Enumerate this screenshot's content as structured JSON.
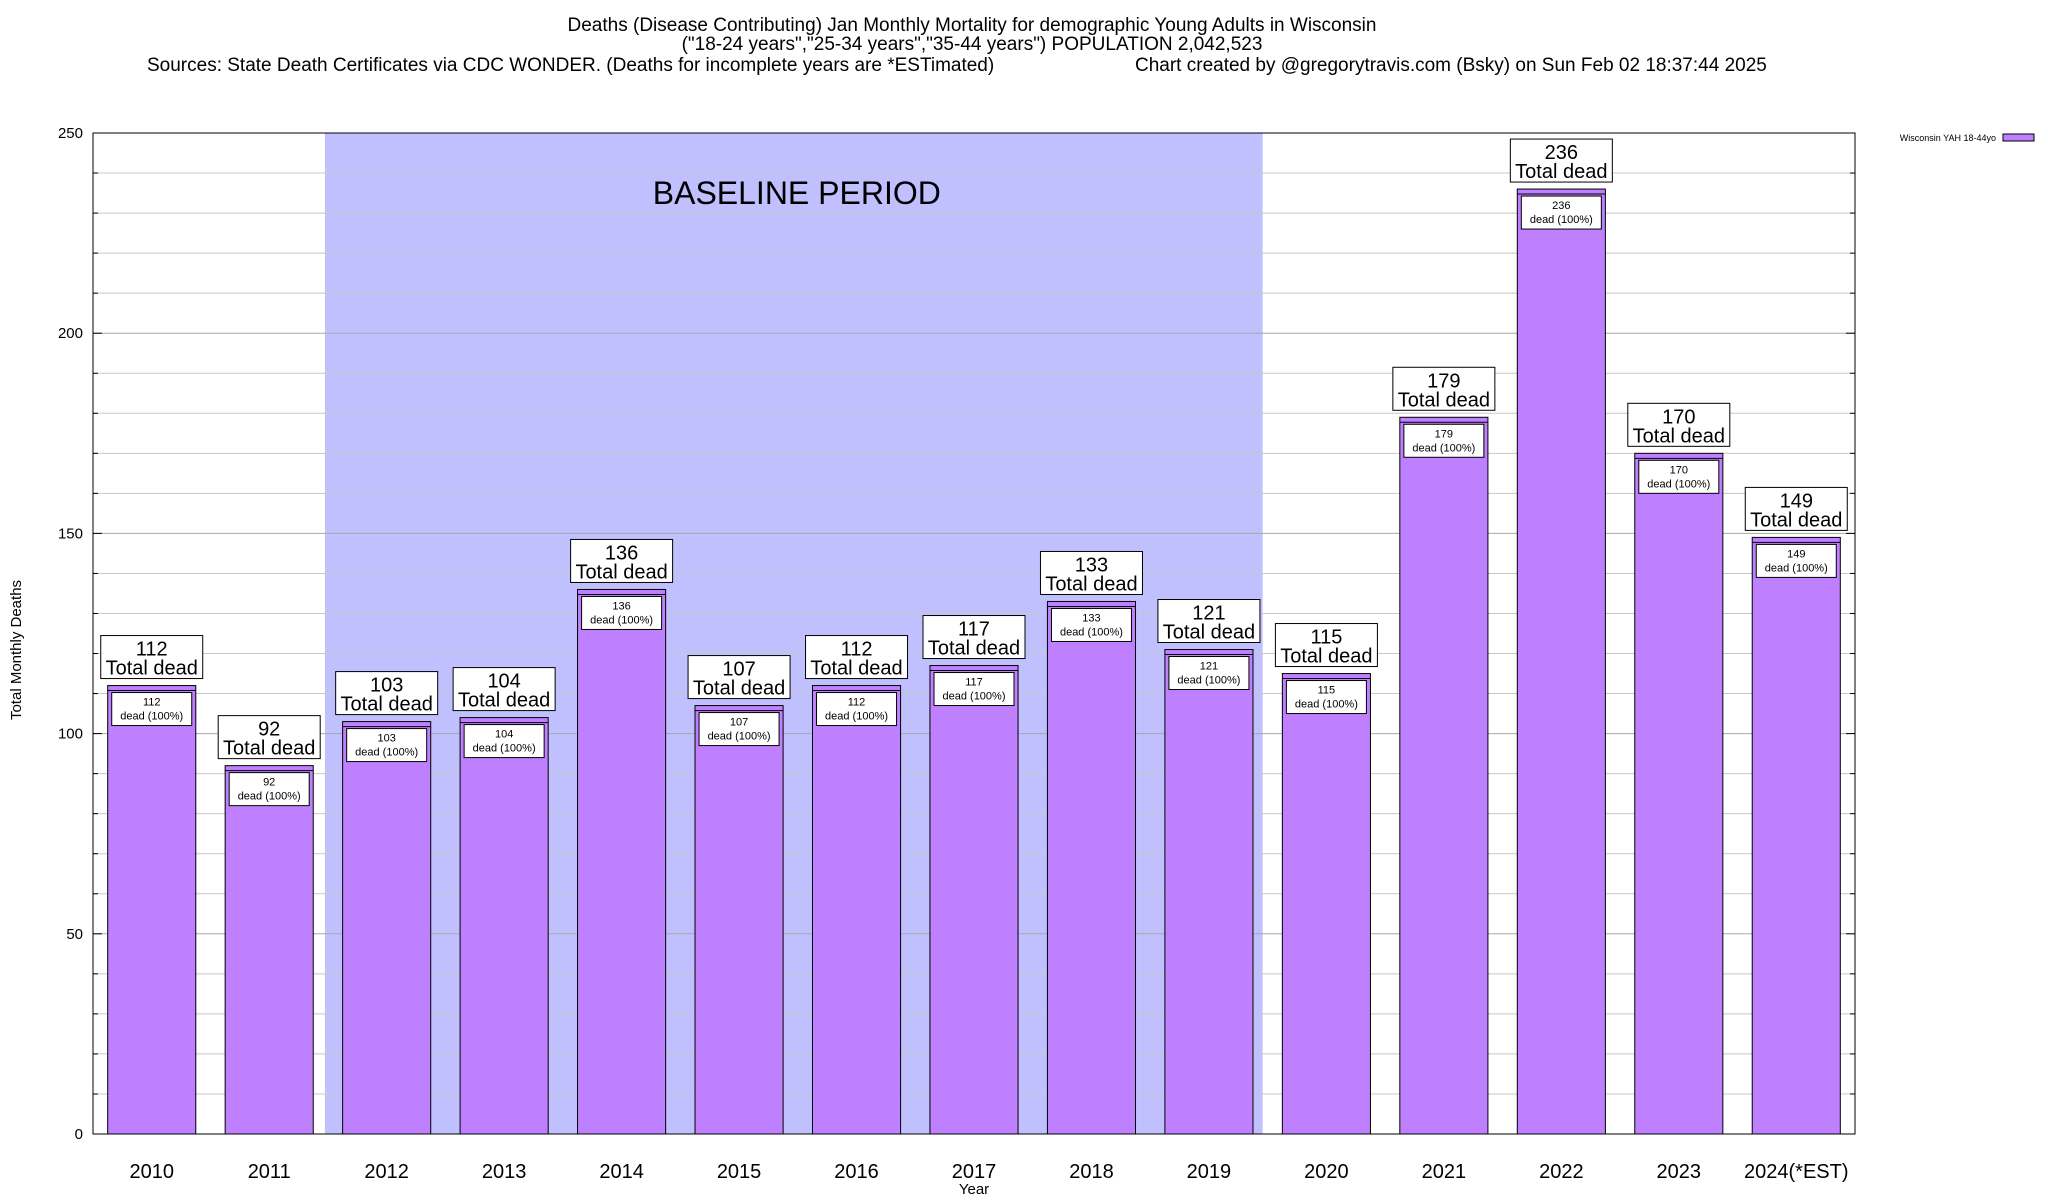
{
  "chart_data": {
    "type": "bar",
    "title_lines": [
      "Deaths (Disease Contributing) Jan Monthly Mortality for demographic Young Adults in Wisconsin",
      "(\"18-24 years\",\"25-34 years\",\"35-44 years\") POPULATION 2,042,523"
    ],
    "sources": "Sources: State Death Certificates via CDC WONDER. (Deaths for incomplete years are *ESTimated)",
    "credit": "Chart created by @gregorytravis.com (Bsky) on Sun Feb 02 18:37:44 2025",
    "xlabel": "Year",
    "ylabel": "Total Monthly Deaths",
    "ylim": [
      0,
      250
    ],
    "yticks": [
      0,
      50,
      100,
      150,
      200,
      250
    ],
    "minor_step": 10,
    "grid": true,
    "legend_position": "top-right",
    "categories": [
      "2010",
      "2011",
      "2012",
      "2013",
      "2014",
      "2015",
      "2016",
      "2017",
      "2018",
      "2019",
      "2020",
      "2021",
      "2022",
      "2023",
      "2024(*EST)"
    ],
    "series": [
      {
        "name": "Wisconsin YAH 18-44yo",
        "color": "#bf80ff",
        "values": [
          112,
          92,
          103,
          104,
          136,
          107,
          112,
          117,
          133,
          121,
          115,
          179,
          236,
          170,
          149
        ]
      }
    ],
    "total_label_text": "Total dead",
    "inner_label_suffix": "dead (100%)",
    "baseline": {
      "label": "BASELINE PERIOD",
      "from": "2012",
      "to": "2019",
      "color": "#c0c0ff"
    }
  }
}
